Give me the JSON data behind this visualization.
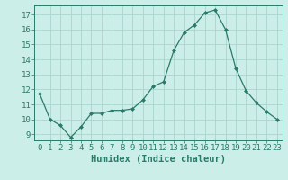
{
  "x": [
    0,
    1,
    2,
    3,
    4,
    5,
    6,
    7,
    8,
    9,
    10,
    11,
    12,
    13,
    14,
    15,
    16,
    17,
    18,
    19,
    20,
    21,
    22,
    23
  ],
  "y": [
    11.7,
    10.0,
    9.6,
    8.8,
    9.5,
    10.4,
    10.4,
    10.6,
    10.6,
    10.7,
    11.3,
    12.2,
    12.5,
    14.6,
    15.8,
    16.3,
    17.1,
    17.3,
    16.0,
    13.4,
    11.9,
    11.1,
    10.5,
    10.0
  ],
  "line_color": "#2a7a6a",
  "marker": "D",
  "marker_size": 2,
  "xlabel": "Humidex (Indice chaleur)",
  "ylim": [
    8.6,
    17.6
  ],
  "xlim": [
    -0.5,
    23.5
  ],
  "yticks": [
    9,
    10,
    11,
    12,
    13,
    14,
    15,
    16,
    17
  ],
  "xticks": [
    0,
    1,
    2,
    3,
    4,
    5,
    6,
    7,
    8,
    9,
    10,
    11,
    12,
    13,
    14,
    15,
    16,
    17,
    18,
    19,
    20,
    21,
    22,
    23
  ],
  "bg_color": "#cceee8",
  "grid_color": "#aad4ce",
  "tick_label_fontsize": 6.5,
  "xlabel_fontsize": 7.5,
  "spine_color": "#2a7a6a"
}
